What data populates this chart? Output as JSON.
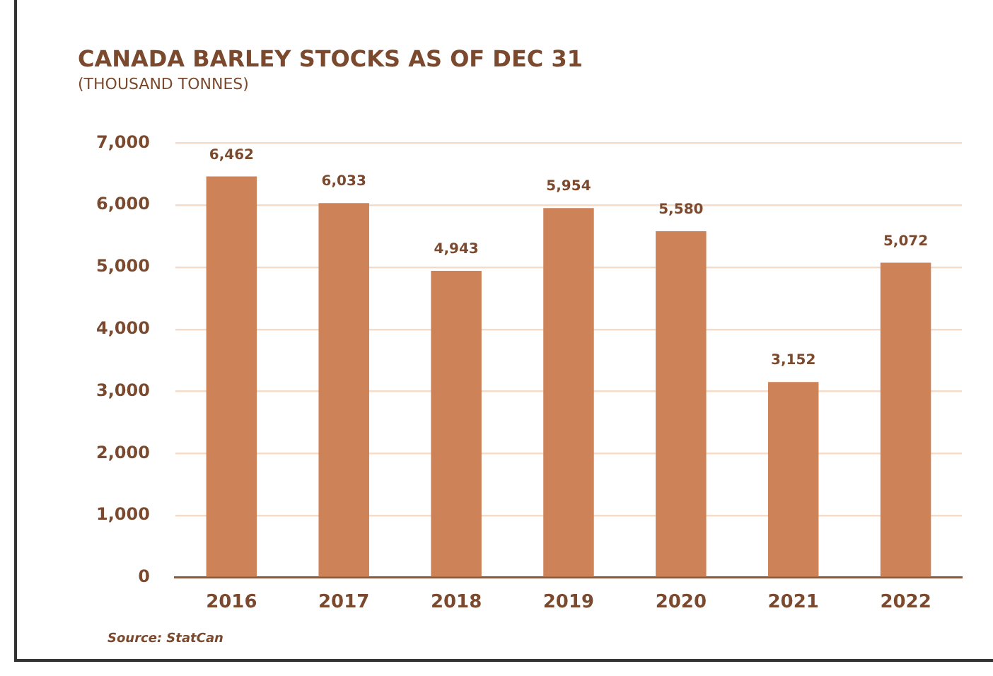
{
  "chart_data": {
    "type": "bar",
    "title": "CANADA BARLEY STOCKS AS OF DEC 31",
    "subtitle": "(THOUSAND TONNES)",
    "categories": [
      "2016",
      "2017",
      "2018",
      "2019",
      "2020",
      "2021",
      "2022"
    ],
    "values": [
      6462,
      6033,
      4943,
      5954,
      5580,
      3152,
      5072
    ],
    "color": "#cd8257",
    "ylim": [
      0,
      7000
    ],
    "yticks": [
      {
        "value": 0,
        "label": "0"
      },
      {
        "value": 1000,
        "label": "1,000"
      },
      {
        "value": 2000,
        "label": "2,000"
      },
      {
        "value": 3000,
        "label": "3,000"
      },
      {
        "value": 4000,
        "label": "4,000"
      },
      {
        "value": 5000,
        "label": "5,000"
      },
      {
        "value": 6000,
        "label": "6,000"
      },
      {
        "value": 7000,
        "label": "7,000"
      }
    ],
    "value_labels": [
      "6,462",
      "6,033",
      "4,943",
      "5,954",
      "5,580",
      "3,152",
      "5,072"
    ],
    "grid": "y",
    "legend": false,
    "annotations": [
      "Source: StatCan"
    ]
  }
}
